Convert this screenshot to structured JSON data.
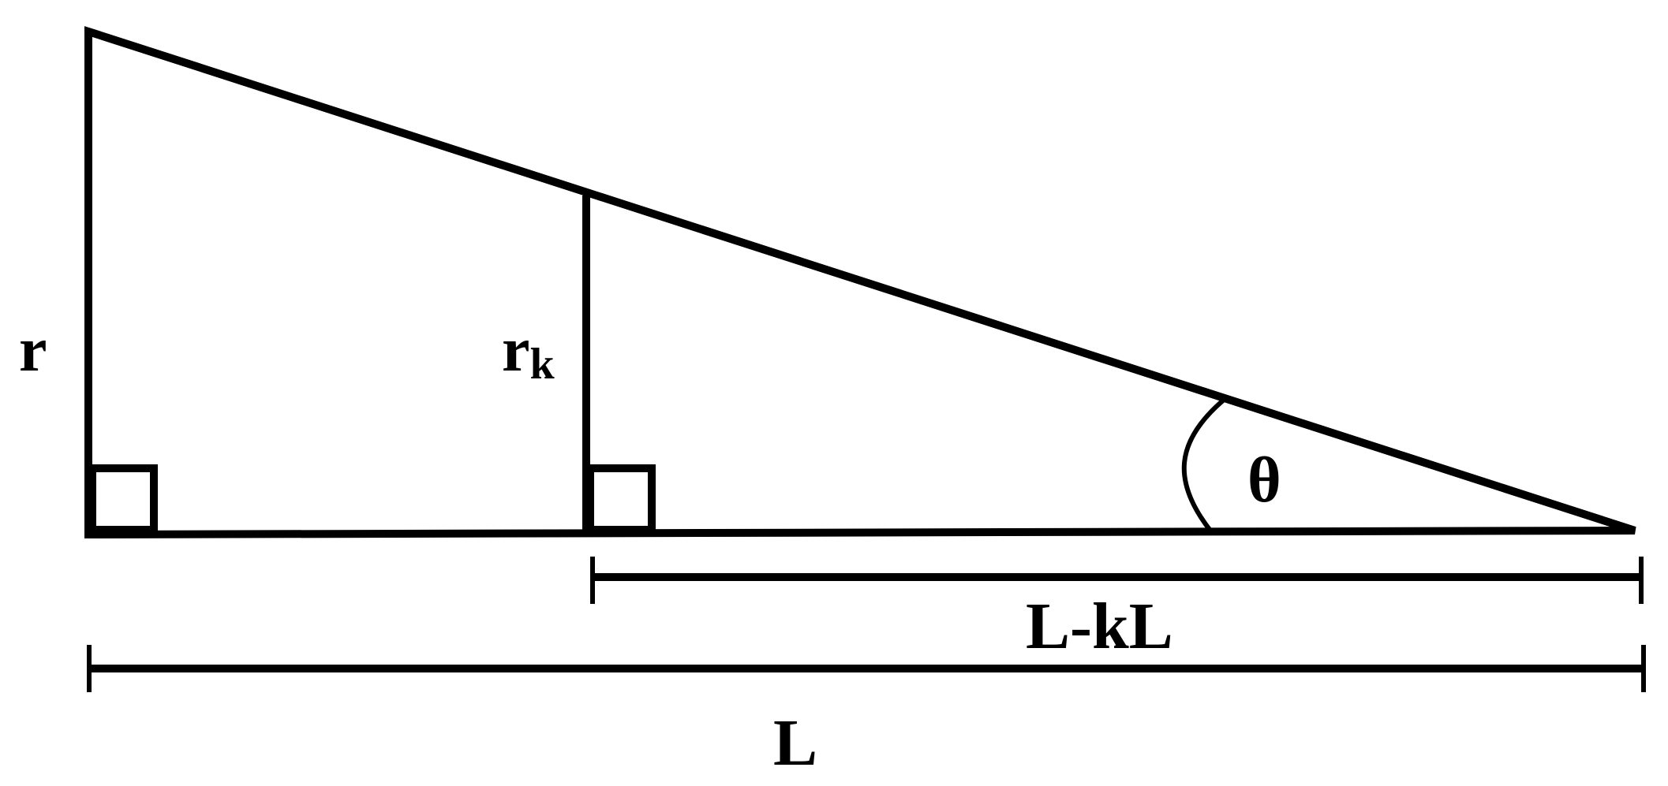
{
  "labels": {
    "outer_height": "r",
    "inner_height_base": "r",
    "inner_height_sub": "k",
    "angle": "θ",
    "inner_length": "L-kL",
    "outer_length": "L"
  }
}
